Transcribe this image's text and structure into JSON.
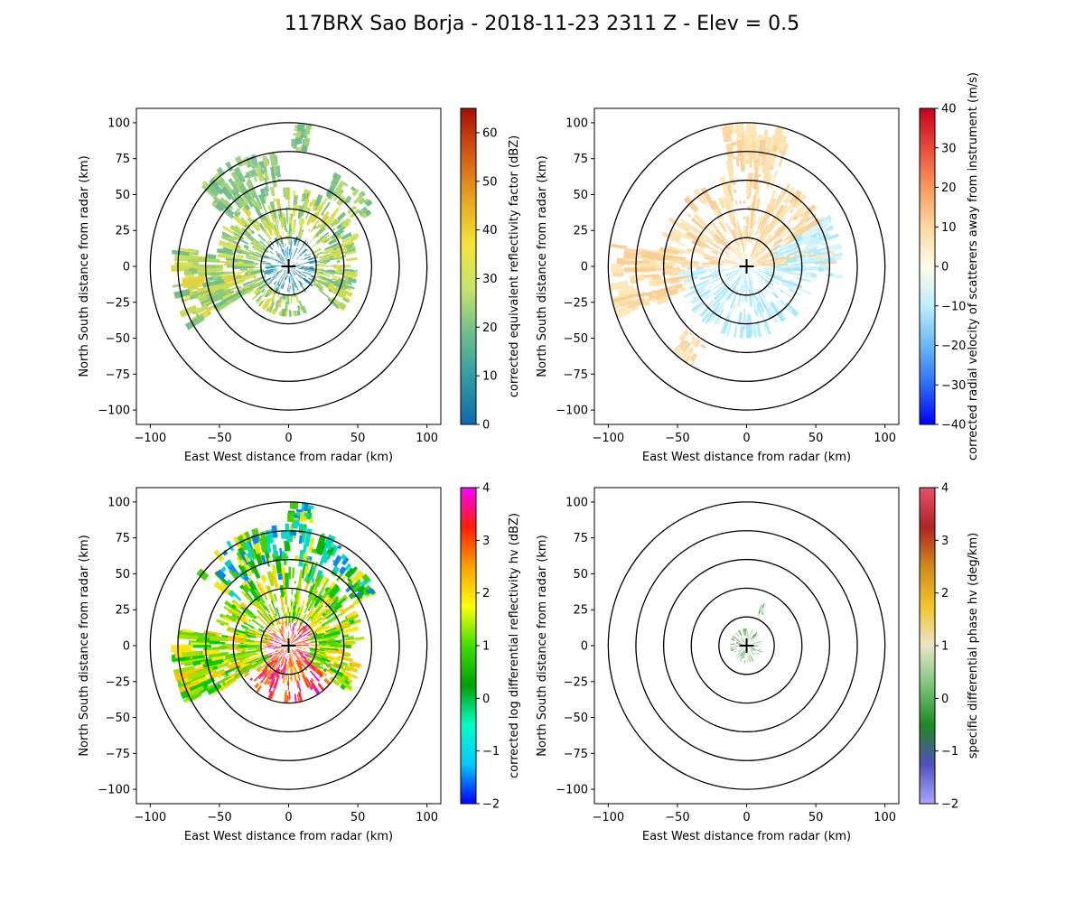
{
  "figure": {
    "title": "117BRX Sao Borja - 2018-11-23 2311 Z -  Elev = 0.5"
  },
  "chart_data": [
    {
      "type": "heatmap",
      "title": "",
      "xlabel": "East West distance from radar (km)",
      "ylabel": "North South distance from radar (km)",
      "xlim": [
        -110,
        110
      ],
      "ylim": [
        -110,
        110
      ],
      "xticks": [
        -100,
        -50,
        0,
        50,
        100
      ],
      "yticks": [
        -100,
        -75,
        -50,
        -25,
        0,
        25,
        50,
        75,
        100
      ],
      "range_rings_km": [
        20,
        40,
        60,
        80,
        100
      ],
      "colorbar": {
        "label": "corrected equivalent reflectivity factor (dBZ)",
        "vmin": 0,
        "vmax": 65,
        "ticks": [
          0,
          10,
          20,
          30,
          40,
          50,
          60
        ],
        "colors": [
          "#0c6aad",
          "#2f9aa4",
          "#6cbe8c",
          "#c5e46a",
          "#f4e33a",
          "#e8a41e",
          "#d45a12",
          "#a80d07"
        ]
      },
      "echo": {
        "extent_km": 85,
        "center_colors": [
          "#1779b9",
          "#2e8fc2",
          "#4aa2b8",
          "#64b58f"
        ],
        "mid_colors": [
          "#6cbe8c",
          "#86c77c",
          "#a6d36b",
          "#c4dd5e",
          "#d8e24f",
          "#e3d43c"
        ],
        "outer_colors": [
          "#7fc48a",
          "#9fd07a",
          "#b8d86c",
          "#6fb88e"
        ]
      }
    },
    {
      "type": "heatmap",
      "title": "",
      "xlabel": "East West distance from radar (km)",
      "ylabel": "North South distance from radar (km)",
      "xlim": [
        -110,
        110
      ],
      "ylim": [
        -110,
        110
      ],
      "xticks": [
        -100,
        -50,
        0,
        50,
        100
      ],
      "yticks": [
        -100,
        -75,
        -50,
        -25,
        0,
        25,
        50,
        75,
        100
      ],
      "range_rings_km": [
        20,
        40,
        60,
        80,
        100
      ],
      "colorbar": {
        "label": "corrected radial velocity of scatterers away from instrument (m/s)",
        "vmin": -40,
        "vmax": 40,
        "ticks": [
          -40,
          -30,
          -20,
          -10,
          0,
          10,
          20,
          30,
          40
        ],
        "colors": [
          "#0000ff",
          "#2d6df6",
          "#6ab8f7",
          "#bdeefb",
          "#fdfde6",
          "#fbd7a0",
          "#f89a5c",
          "#ea4a3a",
          "#c8001e"
        ]
      },
      "echo": {
        "extent_km": 100,
        "north_colors": [
          "#fde7b8",
          "#fbd7a0",
          "#fce2ae",
          "#f9cf92"
        ],
        "south_colors": [
          "#c9f1fb",
          "#b4ecfa",
          "#d8f6fc",
          "#a7e6f7"
        ]
      }
    },
    {
      "type": "heatmap",
      "title": "",
      "xlabel": "East West distance from radar (km)",
      "ylabel": "North South distance from radar (km)",
      "xlim": [
        -110,
        110
      ],
      "ylim": [
        -110,
        110
      ],
      "xticks": [
        -100,
        -50,
        0,
        50,
        100
      ],
      "yticks": [
        -100,
        -75,
        -50,
        -25,
        0,
        25,
        50,
        75,
        100
      ],
      "range_rings_km": [
        20,
        40,
        60,
        80,
        100
      ],
      "colorbar": {
        "label": "corrected log differential reflectivity hv (dBZ)",
        "vmin": -2,
        "vmax": 4,
        "ticks": [
          -2,
          -1,
          0,
          1,
          2,
          3,
          4
        ],
        "colors": [
          "#0000ff",
          "#00c8ff",
          "#00ffc8",
          "#00a000",
          "#40e000",
          "#ffff00",
          "#ffa000",
          "#ff2000",
          "#ff00ff"
        ]
      },
      "echo": {
        "extent_km": 85,
        "center_colors": [
          "#ff7a00",
          "#ff4a00",
          "#ffb000",
          "#ff2a2a",
          "#e800e8"
        ],
        "mid_colors": [
          "#a4e000",
          "#ffe600",
          "#60d800",
          "#ffc400",
          "#00c800"
        ],
        "outer_colors": [
          "#00b400",
          "#40d000",
          "#00d8c0",
          "#0080ff",
          "#e8e800"
        ]
      }
    },
    {
      "type": "heatmap",
      "title": "",
      "xlabel": "East West distance from radar (km)",
      "ylabel": "North South distance from radar (km)",
      "xlim": [
        -110,
        110
      ],
      "ylim": [
        -110,
        110
      ],
      "xticks": [
        -100,
        -50,
        0,
        50,
        100
      ],
      "yticks": [
        -100,
        -75,
        -50,
        -25,
        0,
        25,
        50,
        75,
        100
      ],
      "range_rings_km": [
        20,
        40,
        60,
        80,
        100
      ],
      "colorbar": {
        "label": "specific differential phase hv (deg/km)",
        "vmin": -2,
        "vmax": 4,
        "ticks": [
          -2,
          -1,
          0,
          1,
          2,
          3,
          4
        ],
        "colors": [
          "#a8a8ff",
          "#5050c0",
          "#1f8a1f",
          "#7cc47c",
          "#e8e6c8",
          "#f2c42a",
          "#d08a1a",
          "#b02424",
          "#e8506a"
        ]
      },
      "echo": {
        "extent_km": 12,
        "center_colors": [
          "#7cc47c",
          "#5aa85a",
          "#9ed29e",
          "#3f8f3f"
        ]
      }
    }
  ]
}
